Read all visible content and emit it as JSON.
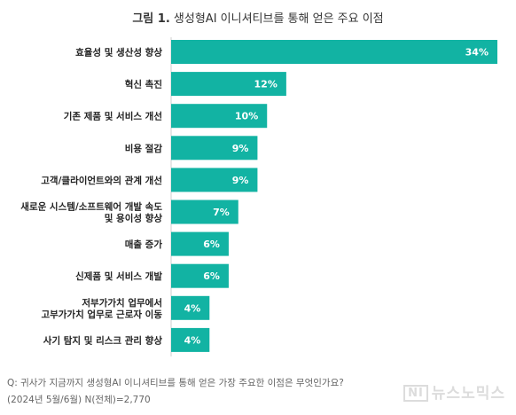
{
  "title": {
    "prefix": "그림 1.",
    "text": "생성형AI 이니셔티브를 통해 얻은 주요 이점"
  },
  "chart_data": {
    "type": "bar",
    "orientation": "horizontal",
    "title": "그림 1. 생성형AI 이니셔티브를 통해 얻은 주요 이점",
    "categories": [
      [
        "효율성 및 생산성 향상"
      ],
      [
        "혁신 촉진"
      ],
      [
        "기존 제품 및 서비스 개선"
      ],
      [
        "비용 절감"
      ],
      [
        "고객/클라이언트와의 관계 개선"
      ],
      [
        "새로운 시스템/소프트웨어 개발 속도",
        "및 용이성 향상"
      ],
      [
        "매출 증가"
      ],
      [
        "신제품 및 서비스 개발"
      ],
      [
        "저부가가치 업무에서",
        "고부가가치 업무로 근로자 이동"
      ],
      [
        "사기 탐지 및 리스크 관리 향상"
      ]
    ],
    "values": [
      34,
      12,
      10,
      9,
      9,
      7,
      6,
      6,
      4,
      4
    ],
    "value_labels": [
      "34%",
      "12%",
      "10%",
      "9%",
      "9%",
      "7%",
      "6%",
      "6%",
      "4%",
      "4%"
    ],
    "unit": "%",
    "xlim": [
      0,
      34
    ],
    "grid": false,
    "legend": "none",
    "bar_color": "#12b3a3"
  },
  "footnote": {
    "question": "Q: 귀사가 지금까지 생성형AI 이니셔티브를 통해 얻은 가장 주요한 이점은 무엇인가요?",
    "sample": "(2024년 5월/6월) N(전체)=2,770"
  },
  "watermark": {
    "badge": "NI",
    "text": "뉴스노믹스"
  }
}
